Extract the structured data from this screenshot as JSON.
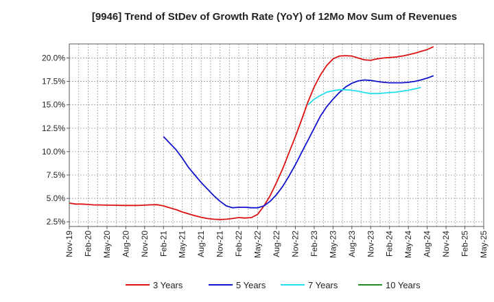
{
  "chart_data": {
    "type": "line",
    "title": "[9946]  Trend of StDev of Growth Rate (YoY) of 12Mo Mov Sum of Revenues",
    "xlabel": "",
    "ylabel": "",
    "ylim": [
      2.0,
      21.5
    ],
    "y_ticks": [
      2.5,
      5.0,
      7.5,
      10.0,
      12.5,
      15.0,
      17.5,
      20.0
    ],
    "y_tick_labels": [
      "2.5%",
      "5.0%",
      "7.5%",
      "10.0%",
      "12.5%",
      "15.0%",
      "17.5%",
      "20.0%"
    ],
    "x_tick_labels": [
      "Nov-19",
      "Feb-20",
      "May-20",
      "Aug-20",
      "Nov-20",
      "Feb-21",
      "May-21",
      "Aug-21",
      "Nov-21",
      "Feb-22",
      "May-22",
      "Aug-22",
      "Nov-22",
      "Feb-23",
      "May-23",
      "Aug-23",
      "Nov-23",
      "Feb-24",
      "May-24",
      "Aug-24",
      "Nov-24",
      "Feb-25",
      "May-25"
    ],
    "grid": true,
    "legend_position": "bottom",
    "series": [
      {
        "name": "3 Years",
        "color": "#dd1111",
        "start_index": 0,
        "values": [
          4.5,
          4.4,
          4.4,
          4.35,
          4.3,
          4.3,
          4.28,
          4.27,
          4.26,
          4.25,
          4.25,
          4.25,
          4.28,
          4.32,
          4.33,
          4.2,
          4.0,
          3.8,
          3.55,
          3.35,
          3.15,
          2.98,
          2.85,
          2.78,
          2.75,
          2.78,
          2.85,
          2.95,
          2.9,
          2.95,
          3.3,
          4.2,
          5.3,
          6.7,
          8.2,
          9.9,
          11.6,
          13.4,
          15.3,
          16.9,
          18.2,
          19.2,
          19.9,
          20.2,
          20.25,
          20.2,
          20.0,
          19.8,
          19.75,
          19.9,
          20.0,
          20.05,
          20.1,
          20.2,
          20.35,
          20.5,
          20.7,
          20.9,
          21.2
        ]
      },
      {
        "name": "5 Years",
        "color": "#1111cc",
        "start_index": 15,
        "values": [
          11.6,
          10.9,
          10.2,
          9.3,
          8.3,
          7.5,
          6.7,
          6.0,
          5.3,
          4.7,
          4.2,
          4.0,
          4.05,
          4.05,
          4.0,
          4.0,
          4.2,
          4.7,
          5.4,
          6.3,
          7.4,
          8.6,
          9.9,
          11.2,
          12.5,
          13.8,
          14.8,
          15.6,
          16.3,
          16.9,
          17.3,
          17.55,
          17.65,
          17.6,
          17.5,
          17.4,
          17.35,
          17.35,
          17.35,
          17.4,
          17.5,
          17.65,
          17.85,
          18.1
        ]
      },
      {
        "name": "7 Years",
        "color": "#22ddee",
        "start_index": 38,
        "values": [
          15.0,
          15.6,
          16.0,
          16.35,
          16.5,
          16.6,
          16.6,
          16.55,
          16.45,
          16.3,
          16.2,
          16.2,
          16.25,
          16.3,
          16.35,
          16.45,
          16.55,
          16.7,
          16.85
        ]
      },
      {
        "name": "10 Years",
        "color": "#228822",
        "start_index": 0,
        "values": []
      }
    ]
  }
}
